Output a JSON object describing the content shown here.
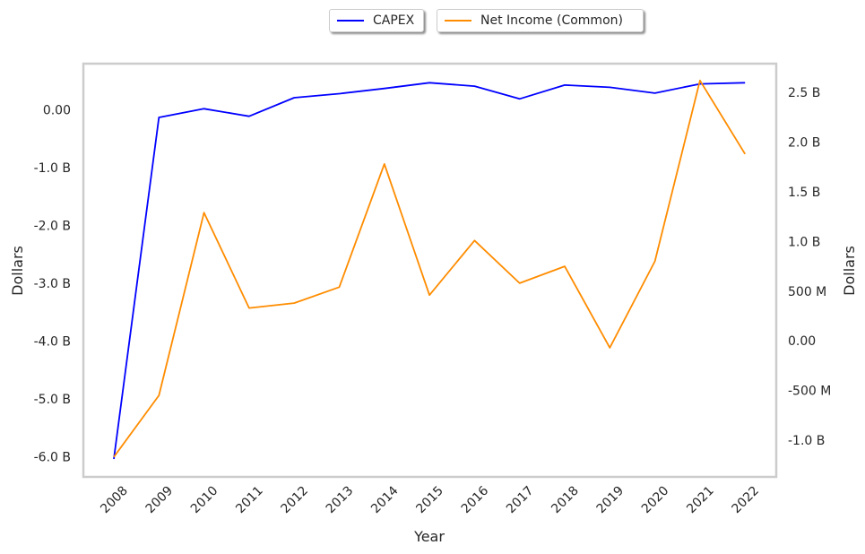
{
  "chart_data": {
    "type": "line",
    "xlabel": "Year",
    "ylabel_left": "Dollars",
    "ylabel_right": "Dollars",
    "x": [
      "2008",
      "2009",
      "2010",
      "2011",
      "2012",
      "2013",
      "2014",
      "2015",
      "2016",
      "2017",
      "2018",
      "2019",
      "2020",
      "2021",
      "2022"
    ],
    "series": [
      {
        "name": "CAPEX",
        "axis": "left",
        "color": "#0000ff",
        "values": [
          -6.04,
          -0.13,
          0.02,
          -0.11,
          0.21,
          0.28,
          0.37,
          0.47,
          0.41,
          0.19,
          0.43,
          0.39,
          0.29,
          0.45,
          0.47
        ]
      },
      {
        "name": "Net Income (Common)",
        "axis": "right",
        "color": "#ff8c00",
        "values": [
          -1.17,
          -0.55,
          1.29,
          0.33,
          0.38,
          0.54,
          1.78,
          0.46,
          1.01,
          0.58,
          0.75,
          -0.07,
          0.8,
          2.62,
          1.88
        ]
      }
    ],
    "y_left": {
      "unit": "billions",
      "ylim": [
        -6.35,
        0.8
      ],
      "ticks": [
        0,
        -1,
        -2,
        -3,
        -4,
        -5,
        -6
      ],
      "tick_labels": [
        "0.00",
        "-1.0 B",
        "-2.0 B",
        "-3.0 B",
        "-4.0 B",
        "-5.0 B",
        "-6.0 B"
      ]
    },
    "y_right": {
      "unit": "billions",
      "ylim": [
        -1.37,
        2.79
      ],
      "ticks": [
        2.5,
        2.0,
        1.5,
        1.0,
        0.5,
        0,
        -0.5,
        -1.0
      ],
      "tick_labels": [
        "2.5 B",
        "2.0 B",
        "1.5 B",
        "1.0 B",
        "500 M",
        "0.00",
        "-500 M",
        "-1.0 B"
      ]
    },
    "grid": false,
    "legend_placement": "top-center, outside plot"
  }
}
